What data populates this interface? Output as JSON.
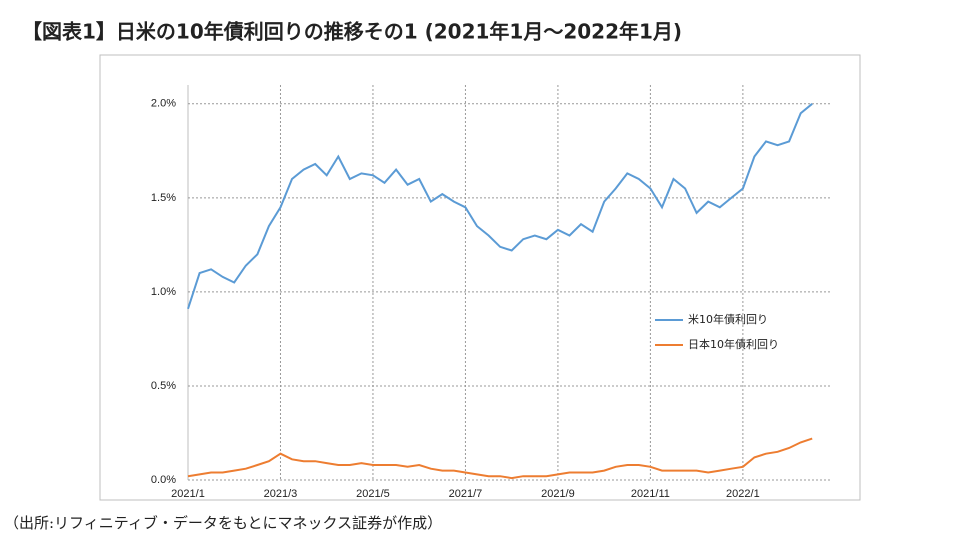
{
  "chart_data": {
    "type": "line",
    "title": "【図表1】日米の10年債利回りの推移その1 (2021年1月～2022年1月)",
    "source": "（出所:リフィニティブ・データをもとにマネックス証券が作成）",
    "categories": [
      "2021/1",
      null,
      null,
      null,
      null,
      null,
      null,
      null,
      "2021/3",
      null,
      null,
      null,
      null,
      null,
      null,
      null,
      "2021/5",
      null,
      null,
      null,
      null,
      null,
      null,
      null,
      "2021/7",
      null,
      null,
      null,
      null,
      null,
      null,
      null,
      "2021/9",
      null,
      null,
      null,
      null,
      null,
      null,
      null,
      "2021/11",
      null,
      null,
      null,
      null,
      null,
      null,
      null,
      "2022/1",
      null,
      null,
      null,
      null,
      null,
      null
    ],
    "series": [
      {
        "name": "米10年債利回り",
        "color": "#5b9bd5",
        "values": [
          0.91,
          1.1,
          1.12,
          1.08,
          1.05,
          1.14,
          1.2,
          1.35,
          1.45,
          1.6,
          1.65,
          1.68,
          1.62,
          1.72,
          1.6,
          1.63,
          1.62,
          1.58,
          1.65,
          1.57,
          1.6,
          1.48,
          1.52,
          1.48,
          1.45,
          1.35,
          1.3,
          1.24,
          1.22,
          1.28,
          1.3,
          1.28,
          1.33,
          1.3,
          1.36,
          1.32,
          1.48,
          1.55,
          1.63,
          1.6,
          1.55,
          1.45,
          1.6,
          1.55,
          1.42,
          1.48,
          1.45,
          1.5,
          1.55,
          1.72,
          1.8,
          1.78,
          1.8,
          1.95,
          2.0
        ]
      },
      {
        "name": "日本10年債利回り",
        "color": "#ed7d31",
        "values": [
          0.02,
          0.03,
          0.04,
          0.04,
          0.05,
          0.06,
          0.08,
          0.1,
          0.14,
          0.11,
          0.1,
          0.1,
          0.09,
          0.08,
          0.08,
          0.09,
          0.08,
          0.08,
          0.08,
          0.07,
          0.08,
          0.06,
          0.05,
          0.05,
          0.04,
          0.03,
          0.02,
          0.02,
          0.01,
          0.02,
          0.02,
          0.02,
          0.03,
          0.04,
          0.04,
          0.04,
          0.05,
          0.07,
          0.08,
          0.08,
          0.07,
          0.05,
          0.05,
          0.05,
          0.05,
          0.04,
          0.05,
          0.06,
          0.07,
          0.12,
          0.14,
          0.15,
          0.17,
          0.2,
          0.22
        ]
      }
    ],
    "ylim": [
      0,
      2.1
    ],
    "yticks": [
      {
        "value": 0,
        "label": "0.0%"
      },
      {
        "value": 0.5,
        "label": "0.5%"
      },
      {
        "value": 1,
        "label": "1.0%"
      },
      {
        "value": 1.5,
        "label": "1.5%"
      },
      {
        "value": 2,
        "label": "2.0%"
      }
    ],
    "grid": true
  }
}
